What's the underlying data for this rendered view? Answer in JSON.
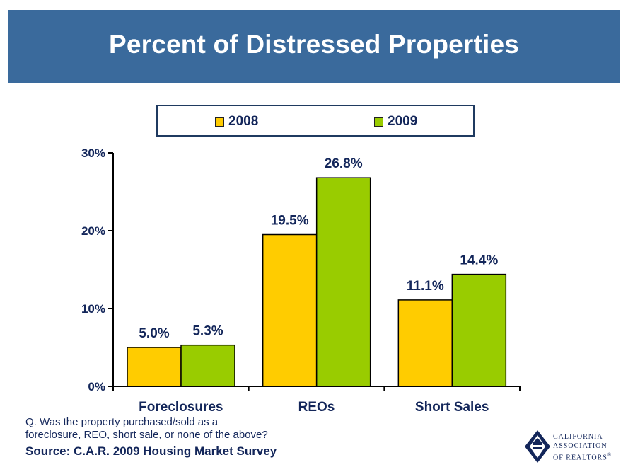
{
  "slide": {
    "title": "Percent of Distressed Properties",
    "question_line1": "Q. Was the property purchased/sold as a",
    "question_line2": "foreclosure, REO, short sale, or none of the above?",
    "source": "Source: C.A.R. 2009 Housing Market Survey"
  },
  "logo": {
    "line1": "CALIFORNIA",
    "line2": "ASSOCIATION",
    "line3": "OF REALTORS",
    "mark": "®"
  },
  "colors": {
    "banner": "#3a6a9c",
    "text": "#13265a",
    "series_2008": "#ffcc00",
    "series_2009": "#99cc00"
  },
  "chart_data": {
    "type": "bar",
    "title": "Percent of Distressed Properties",
    "categories": [
      "Foreclosures",
      "REOs",
      "Short Sales"
    ],
    "series": [
      {
        "name": "2008",
        "values": [
          5.0,
          19.5,
          11.1
        ],
        "labels": [
          "5.0%",
          "19.5%",
          "11.1%"
        ],
        "color": "#ffcc00"
      },
      {
        "name": "2009",
        "values": [
          5.3,
          26.8,
          14.4
        ],
        "labels": [
          "5.3%",
          "26.8%",
          "14.4%"
        ],
        "color": "#99cc00"
      }
    ],
    "ylim": [
      0,
      30
    ],
    "yticks": [
      0,
      10,
      20,
      30
    ],
    "ytick_labels": [
      "0%",
      "10%",
      "20%",
      "30%"
    ],
    "xlabel": "",
    "ylabel": "",
    "grid": false,
    "legend": "top"
  }
}
